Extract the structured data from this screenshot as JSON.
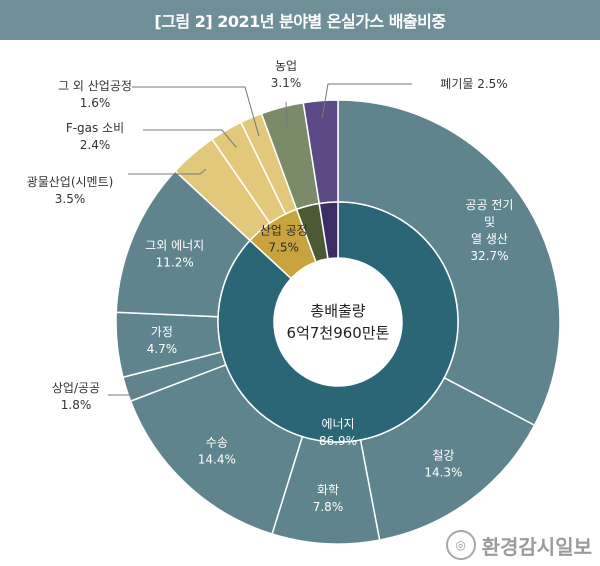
{
  "title": "[그림 2] 2021년 분야별 온실가스 배출비중",
  "center": {
    "line1": "총배출량",
    "line2": "6억7천960만톤"
  },
  "watermark": {
    "text": "환경감시일보"
  },
  "colors": {
    "title_bg": "#6e8f98",
    "energy_outer": "#5f848d",
    "energy_inner": "#2b6677",
    "industrial_outer": "#e2c87a",
    "industrial_inner": "#c9a43e",
    "agriculture_outer": "#7b8a68",
    "agriculture_inner": "#4b5a35",
    "waste_outer": "#5c4a86",
    "waste_inner": "#3d2d66"
  },
  "chart_data": {
    "type": "donut",
    "title": "[그림 2] 2021년 분야별 온실가스 배출비중",
    "inner": [
      {
        "name": "에너지",
        "value": 86.9,
        "label": "86.9%"
      },
      {
        "name": "산업 공정",
        "value": 7.5,
        "label": "7.5%"
      },
      {
        "name": "농업",
        "value": 3.1,
        "label": ""
      },
      {
        "name": "폐기물",
        "value": 2.5,
        "label": ""
      }
    ],
    "outer": [
      {
        "name": "공공 전기 및 열 생산",
        "value": 32.7,
        "label": "32.7%",
        "group": "energy"
      },
      {
        "name": "철강",
        "value": 14.3,
        "label": "14.3%",
        "group": "energy"
      },
      {
        "name": "화학",
        "value": 7.8,
        "label": "7.8%",
        "group": "energy"
      },
      {
        "name": "수송",
        "value": 14.4,
        "label": "14.4%",
        "group": "energy"
      },
      {
        "name": "상업/공공",
        "value": 1.8,
        "label": "1.8%",
        "group": "energy"
      },
      {
        "name": "가정",
        "value": 4.7,
        "label": "4.7%",
        "group": "energy"
      },
      {
        "name": "그외 에너지",
        "value": 11.2,
        "label": "11.2%",
        "group": "energy"
      },
      {
        "name": "광물산업(시멘트)",
        "value": 3.5,
        "label": "3.5%",
        "group": "industrial"
      },
      {
        "name": "F-gas 소비",
        "value": 2.4,
        "label": "2.4%",
        "group": "industrial"
      },
      {
        "name": "그 외 산업공정",
        "value": 1.6,
        "label": "1.6%",
        "group": "industrial"
      },
      {
        "name": "농업",
        "value": 3.1,
        "label": "3.1%",
        "group": "agriculture"
      },
      {
        "name": "폐기물",
        "value": 2.5,
        "label": "2.5%",
        "group": "waste"
      }
    ]
  }
}
